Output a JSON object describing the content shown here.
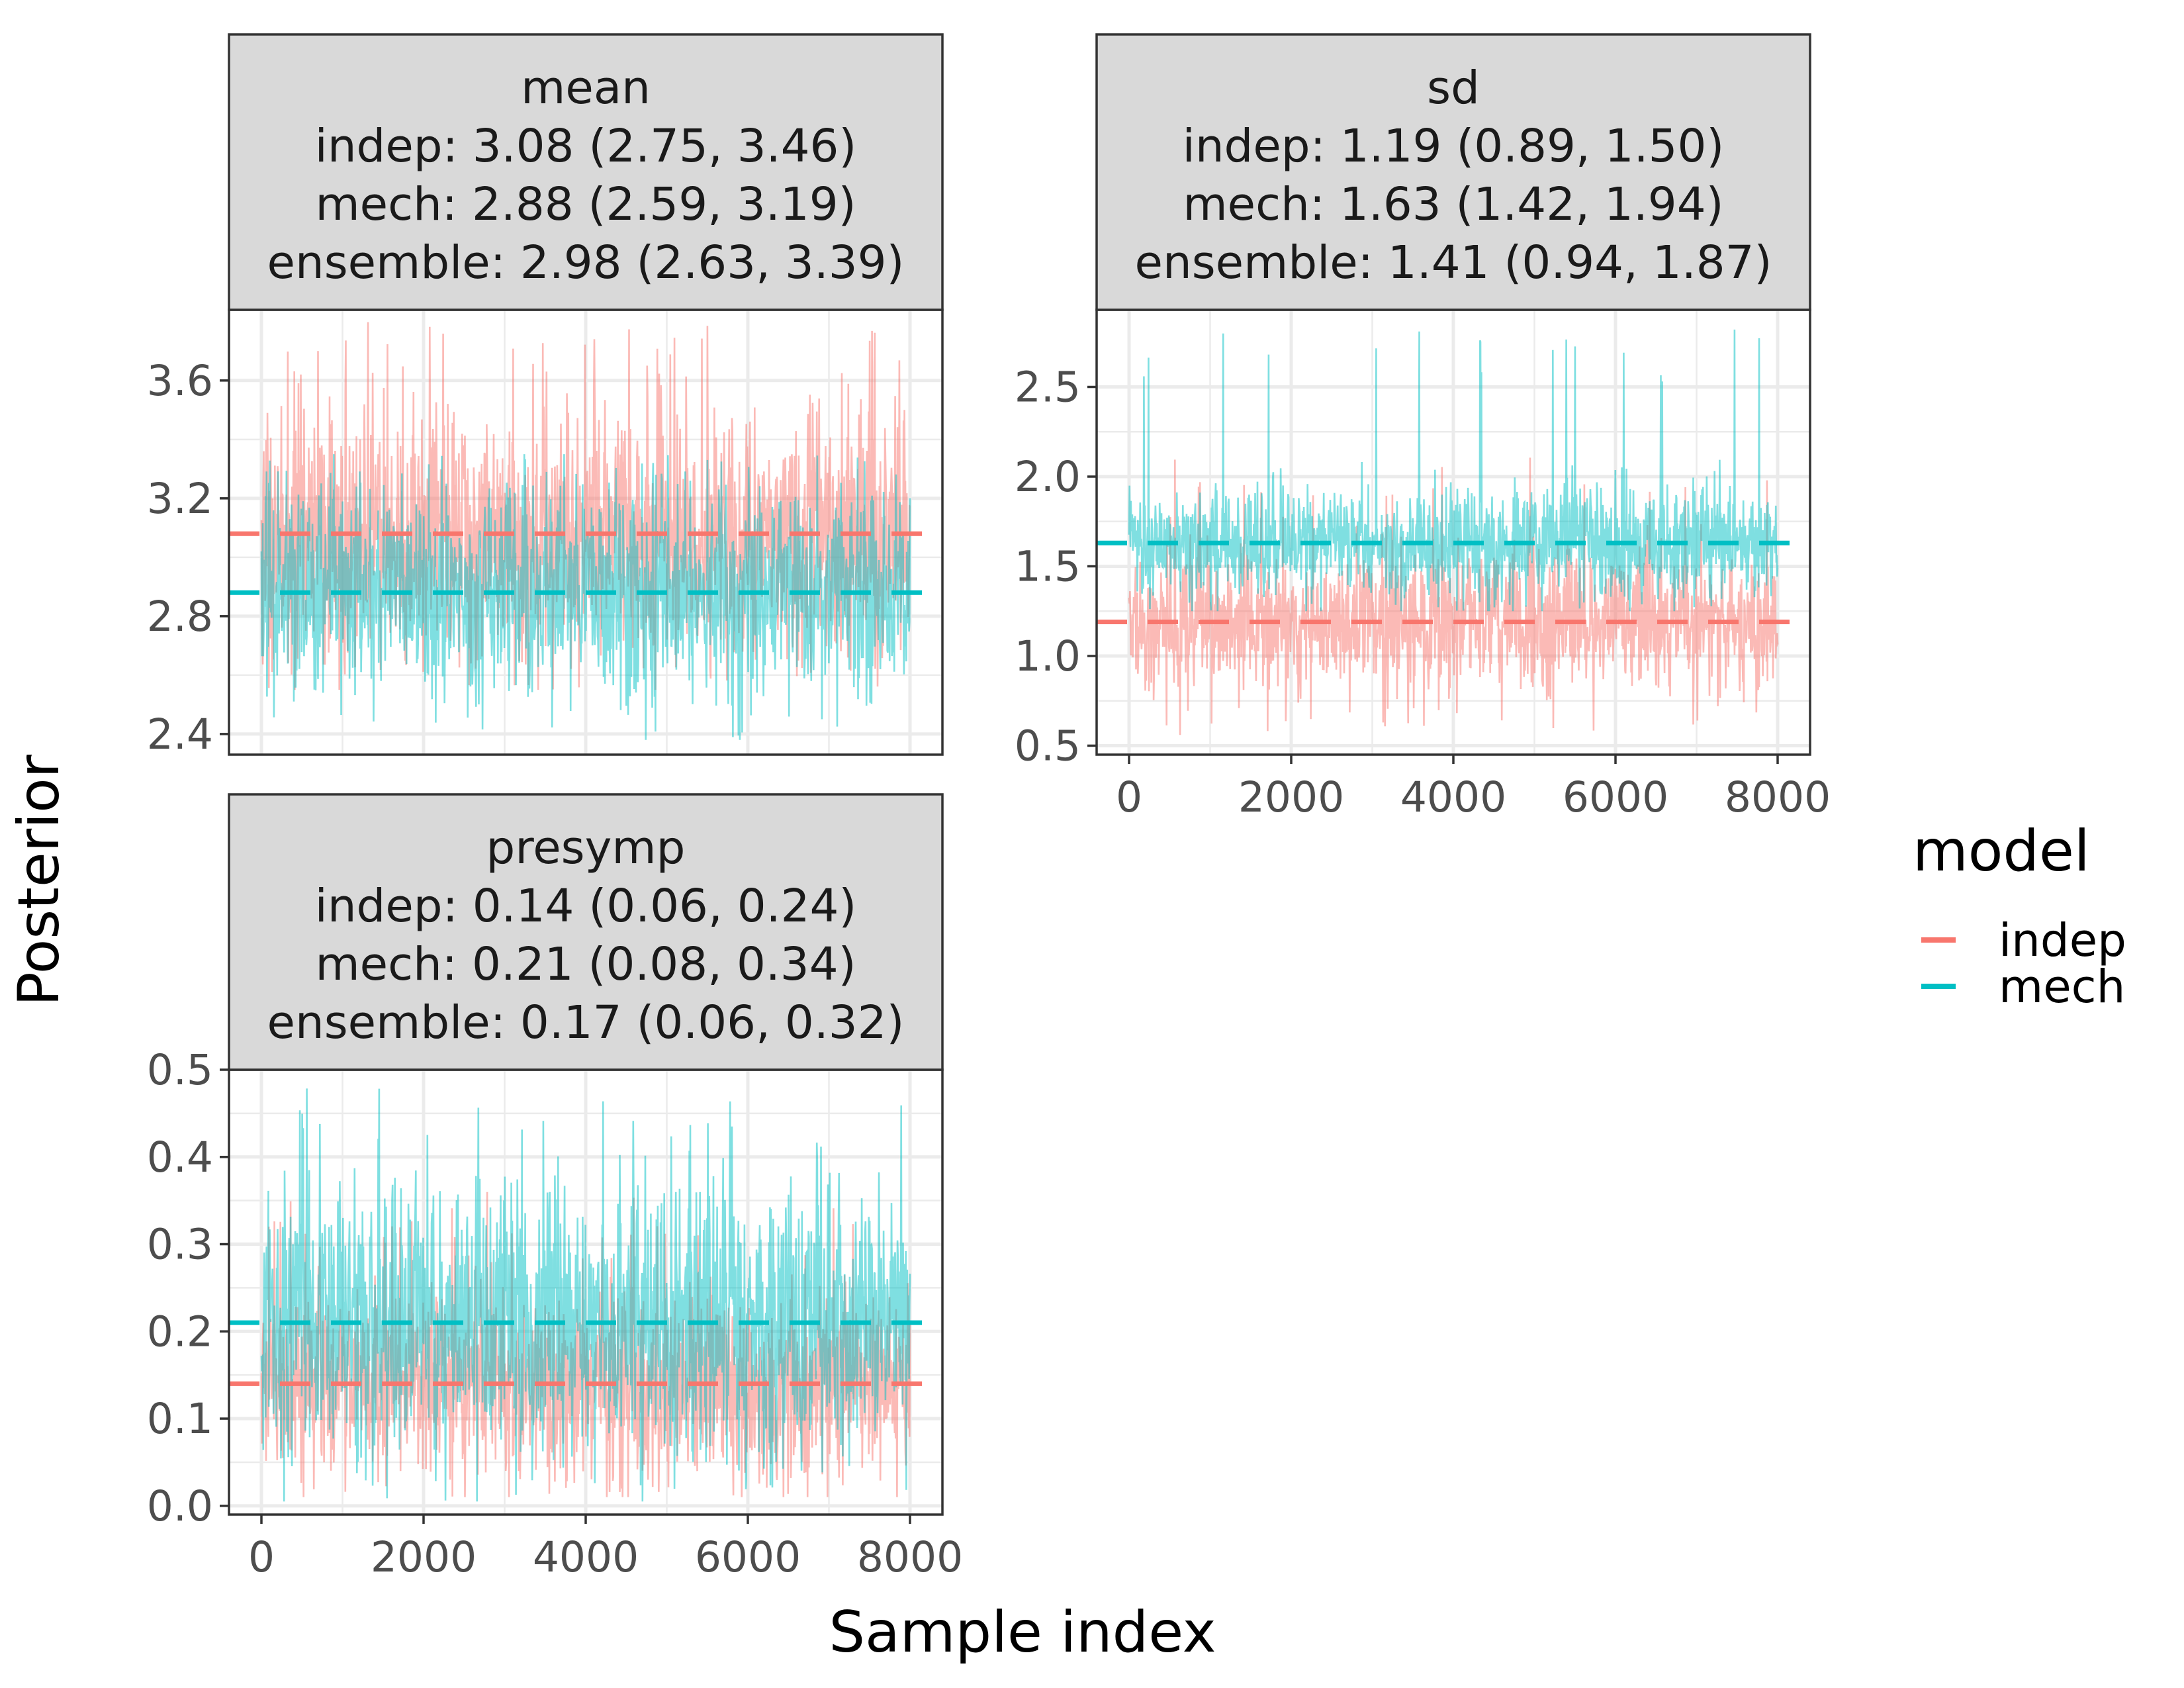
{
  "chart_data": {
    "type": "line",
    "xlabel": "Sample index",
    "ylabel": "Posterior",
    "legend": {
      "title": "model",
      "placement": "right",
      "entries": [
        {
          "label": "indep",
          "color": "#F8766D"
        },
        {
          "label": "mech",
          "color": "#00BFC4"
        }
      ]
    },
    "colors": {
      "indep": "#F8766D",
      "mech": "#00BFC4",
      "strip": "#d9d9d9",
      "grid": "#ebebeb"
    },
    "panels": [
      {
        "id": "mean",
        "strip": [
          "mean",
          "indep: 3.08 (2.75, 3.46)",
          "mech: 2.88 (2.59, 3.19)",
          "ensemble: 2.98 (2.63, 3.39)"
        ],
        "xlim": [
          -400,
          8400
        ],
        "ylim": [
          2.33,
          3.84
        ],
        "xticks": [
          0,
          2000,
          4000,
          6000,
          8000
        ],
        "yticks": [
          2.4,
          2.8,
          3.2,
          3.6
        ],
        "ytick_labels": [
          "2.4",
          "2.8",
          "3.2",
          "3.6"
        ],
        "show_x_axis": false,
        "series": [
          {
            "name": "indep",
            "mean": 3.08,
            "lo": 2.75,
            "hi": 3.46,
            "spike_max": 3.8,
            "spike_min": 2.55
          },
          {
            "name": "mech",
            "mean": 2.88,
            "lo": 2.59,
            "hi": 3.19,
            "spike_max": 3.35,
            "spike_min": 2.38
          }
        ]
      },
      {
        "id": "sd",
        "strip": [
          "sd",
          "indep: 1.19 (0.89, 1.50)",
          "mech: 1.63 (1.42, 1.94)",
          "ensemble: 1.41 (0.94, 1.87)"
        ],
        "xlim": [
          -400,
          8400
        ],
        "ylim": [
          0.45,
          2.93
        ],
        "xticks": [
          0,
          2000,
          4000,
          6000,
          8000
        ],
        "yticks": [
          0.5,
          1.0,
          1.5,
          2.0,
          2.5
        ],
        "ytick_labels": [
          "0.5",
          "1.0",
          "1.5",
          "2.0",
          "2.5"
        ],
        "show_x_axis": true,
        "series": [
          {
            "name": "indep",
            "mean": 1.19,
            "lo": 0.89,
            "hi": 1.5,
            "spike_max": 2.12,
            "spike_min": 0.56
          },
          {
            "name": "mech",
            "mean": 1.63,
            "lo": 1.42,
            "hi": 1.94,
            "spike_max": 2.82,
            "spike_min": 1.25
          }
        ]
      },
      {
        "id": "presymp",
        "strip": [
          "presymp",
          "indep: 0.14 (0.06, 0.24)",
          "mech: 0.21 (0.08, 0.34)",
          "ensemble: 0.17 (0.06, 0.32)"
        ],
        "xlim": [
          -400,
          8400
        ],
        "ylim": [
          -0.01,
          0.5
        ],
        "xticks": [
          0,
          2000,
          4000,
          6000,
          8000
        ],
        "yticks": [
          0.0,
          0.1,
          0.2,
          0.3,
          0.4,
          0.5
        ],
        "ytick_labels": [
          "0.0",
          "0.1",
          "0.2",
          "0.3",
          "0.4",
          "0.5"
        ],
        "show_x_axis": true,
        "series": [
          {
            "name": "indep",
            "mean": 0.14,
            "lo": 0.06,
            "hi": 0.24,
            "spike_max": 0.36,
            "spike_min": 0.01
          },
          {
            "name": "mech",
            "mean": 0.21,
            "lo": 0.08,
            "hi": 0.34,
            "spike_max": 0.48,
            "spike_min": 0.005
          }
        ]
      }
    ]
  }
}
